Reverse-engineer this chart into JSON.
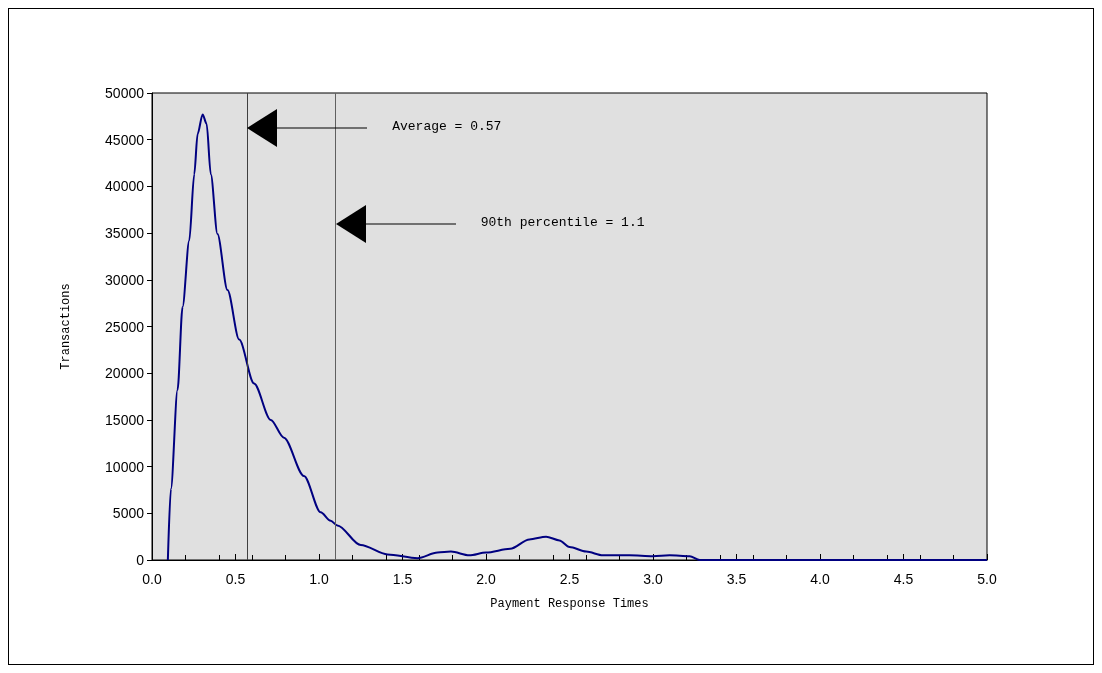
{
  "chart_data": {
    "type": "line",
    "xlabel": "Payment Response Times",
    "ylabel": "Transactions",
    "series": [
      {
        "color": "#000080",
        "x": [
          0.095,
          0.113,
          0.153,
          0.183,
          0.223,
          0.253,
          0.273,
          0.303,
          0.327,
          0.352,
          0.392,
          0.452,
          0.522,
          0.611,
          0.711,
          0.79,
          0.91,
          1.01,
          1.07,
          1.11,
          1.25,
          1.41,
          1.59,
          1.71,
          1.79,
          1.9,
          2.0,
          2.145,
          2.26,
          2.36,
          2.44,
          2.5,
          2.6,
          2.7,
          2.86,
          3.0,
          3.1,
          3.22,
          3.28,
          4.0,
          5.0
        ],
        "values": [
          0,
          7600,
          18200,
          27100,
          34200,
          41300,
          45600,
          47700,
          46700,
          41300,
          34900,
          28900,
          23600,
          18900,
          15000,
          13100,
          9000,
          5100,
          4200,
          3700,
          1600,
          600,
          200,
          800,
          900,
          500,
          800,
          1200,
          2200,
          2500,
          2100,
          1400,
          900,
          500,
          500,
          400,
          500,
          400,
          0,
          0,
          0
        ]
      }
    ],
    "xlim": [
      0,
      5
    ],
    "xticks": [
      {
        "value": 0,
        "label": "0.0"
      },
      0.5,
      {
        "value": 1,
        "label": "1.0"
      },
      1.5,
      {
        "value": 2,
        "label": "2.0"
      },
      2.5,
      {
        "value": 3,
        "label": "3.0"
      },
      3.5,
      {
        "value": 4,
        "label": "4.0"
      },
      4.5,
      {
        "value": 5,
        "label": "5.0"
      }
    ],
    "ylim": [
      0,
      50000
    ],
    "yticks": [
      0,
      5000,
      10000,
      15000,
      20000,
      25000,
      30000,
      35000,
      40000,
      45000,
      50000
    ],
    "ref_lines": [
      {
        "axis": "x",
        "value": 0.57,
        "color": "#404040"
      },
      {
        "axis": "x",
        "value": 1.1,
        "color": "#606060"
      }
    ],
    "annotations": [
      "Average = 0.57",
      "90th percentile = 1.1"
    ],
    "grid": false,
    "marker": "none",
    "line_style": "solid"
  }
}
